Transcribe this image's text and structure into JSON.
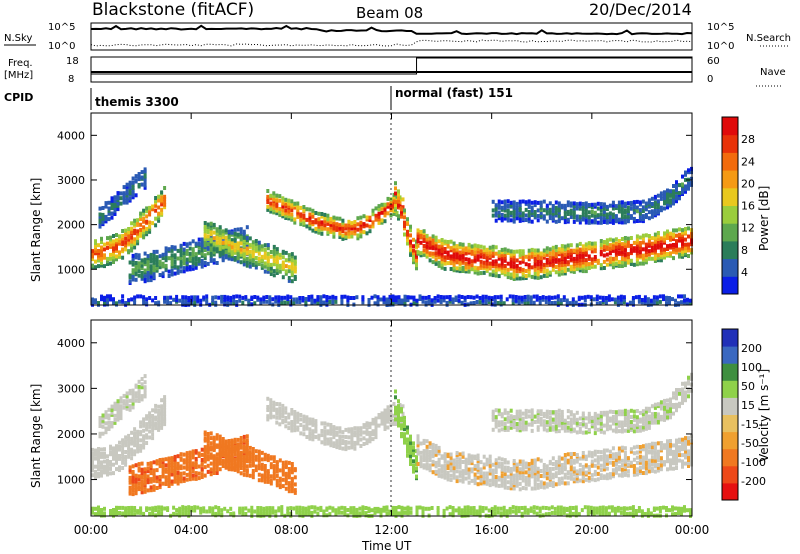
{
  "header": {
    "station_label": "Blackstone (fitACF)",
    "beam_label": "Beam 08",
    "date_label": "20/Dec/2014"
  },
  "top_panels": {
    "nsky_label": "N.Sky",
    "nsky_ticks": [
      "10^5",
      "10^0"
    ],
    "nsearch_label": "N.Search",
    "nsearch_ticks": [
      "10^5",
      "10^0"
    ],
    "freq_label": "Freq.",
    "freq_unit": "[MHz]",
    "freq_ticks": [
      "18",
      "8"
    ],
    "nave_label": "Nave",
    "nave_ticks": [
      "60",
      "0"
    ],
    "cpid_label": "CPID",
    "cpid_segments": [
      {
        "label": "themis 3300",
        "start_hour": 0
      },
      {
        "label": "normal (fast) 151",
        "start_hour": 12
      }
    ]
  },
  "x_axis": {
    "label": "Time UT",
    "ticks": [
      "00:00",
      "04:00",
      "08:00",
      "12:00",
      "16:00",
      "20:00",
      "00:00"
    ]
  },
  "y_axis": {
    "label": "Slant Range [km]",
    "ticks": [
      "1000",
      "2000",
      "3000",
      "4000"
    ]
  },
  "colorbars": {
    "power": {
      "label": "Power [dB]",
      "ticks": [
        "4",
        "8",
        "12",
        "16",
        "20",
        "24",
        "28"
      ],
      "colors": [
        "#0a1ee6",
        "#2a5ab4",
        "#2b7d5a",
        "#5ea84e",
        "#9acd3c",
        "#e8c81e",
        "#f59a14",
        "#f26b0c",
        "#e83208",
        "#e00a0a"
      ]
    },
    "velocity": {
      "label": "Velocity [m s⁻¹]",
      "ticks": [
        "200",
        "100",
        "50",
        "15",
        "-15",
        "-50",
        "-100",
        "-200"
      ],
      "colors": [
        "#2030b8",
        "#3a68c0",
        "#3f8f40",
        "#8fd14a",
        "#c8c8c0",
        "#e8c060",
        "#f0a030",
        "#f07820",
        "#ee4818",
        "#e61010"
      ]
    }
  },
  "chart_data": {
    "type": "heatmap",
    "title": "Blackstone (fitACF)",
    "xlabel": "Time UT",
    "ylabel": "Slant Range [km]",
    "xlim": [
      0,
      24
    ],
    "ylim": [
      200,
      4500
    ],
    "x_ticks_hours": [
      0,
      4,
      8,
      12,
      16,
      20,
      24
    ],
    "y_ticks_km": [
      1000,
      2000,
      3000,
      4000
    ],
    "power_scale_db": [
      0,
      30
    ],
    "velocity_scale": [
      -200,
      200
    ],
    "nave_step": {
      "before": 18,
      "after": 33,
      "change_hour": 13
    },
    "freq_mhz": 10,
    "echo_bands": [
      {
        "name": "early",
        "points": [
          [
            0.0,
            1400
          ],
          [
            0.5,
            1450
          ],
          [
            1.0,
            1550
          ],
          [
            1.5,
            1750
          ],
          [
            2.0,
            2050
          ],
          [
            2.5,
            2350
          ],
          [
            3.0,
            2650
          ]
        ],
        "power": 20,
        "velocity": 0
      },
      {
        "name": "upper-early",
        "points": [
          [
            0.3,
            2200
          ],
          [
            0.8,
            2450
          ],
          [
            1.3,
            2700
          ],
          [
            1.8,
            2950
          ],
          [
            2.2,
            3150
          ]
        ],
        "power": 6,
        "velocity": 5
      },
      {
        "name": "mid-low",
        "points": [
          [
            1.5,
            1050
          ],
          [
            2.5,
            1150
          ],
          [
            3.5,
            1300
          ],
          [
            4.5,
            1450
          ],
          [
            5.5,
            1600
          ],
          [
            6.2,
            1700
          ]
        ],
        "power": 8,
        "velocity": -90
      },
      {
        "name": "mid-low-2",
        "points": [
          [
            4.5,
            1850
          ],
          [
            5.5,
            1600
          ],
          [
            6.5,
            1400
          ],
          [
            7.5,
            1200
          ],
          [
            8.2,
            1050
          ]
        ],
        "power": 14,
        "velocity": -80
      },
      {
        "name": "upper-mid",
        "points": [
          [
            7.0,
            2600
          ],
          [
            8.0,
            2350
          ],
          [
            9.0,
            2100
          ],
          [
            10.0,
            1950
          ],
          [
            10.5,
            1950
          ],
          [
            11.2,
            2150
          ],
          [
            12.0,
            2500
          ],
          [
            12.5,
            2450
          ]
        ],
        "power": 22,
        "velocity": 0
      },
      {
        "name": "drop",
        "points": [
          [
            12.1,
            2700
          ],
          [
            12.4,
            2200
          ],
          [
            12.7,
            1700
          ],
          [
            13.0,
            1300
          ]
        ],
        "power": 22,
        "velocity": 40
      },
      {
        "name": "late",
        "points": [
          [
            13.0,
            1700
          ],
          [
            14.0,
            1400
          ],
          [
            15.0,
            1300
          ],
          [
            16.0,
            1250
          ],
          [
            17.0,
            1150
          ],
          [
            18.0,
            1200
          ],
          [
            19.0,
            1300
          ],
          [
            20.0,
            1350
          ],
          [
            21.0,
            1450
          ],
          [
            22.0,
            1500
          ],
          [
            23.0,
            1600
          ],
          [
            24.0,
            1700
          ]
        ],
        "power": 24,
        "velocity": -5
      },
      {
        "name": "late-upper",
        "points": [
          [
            16.0,
            2350
          ],
          [
            18.0,
            2350
          ],
          [
            20.0,
            2300
          ],
          [
            22.0,
            2350
          ],
          [
            23.0,
            2600
          ],
          [
            24.0,
            3200
          ]
        ],
        "power": 6,
        "velocity": 5
      },
      {
        "name": "ground",
        "points": [
          [
            0.0,
            300
          ],
          [
            4.0,
            300
          ],
          [
            8.0,
            300
          ],
          [
            12.0,
            300
          ],
          [
            16.0,
            300
          ],
          [
            20.0,
            300
          ],
          [
            24.0,
            300
          ]
        ],
        "power": 4,
        "velocity": 30
      }
    ]
  }
}
